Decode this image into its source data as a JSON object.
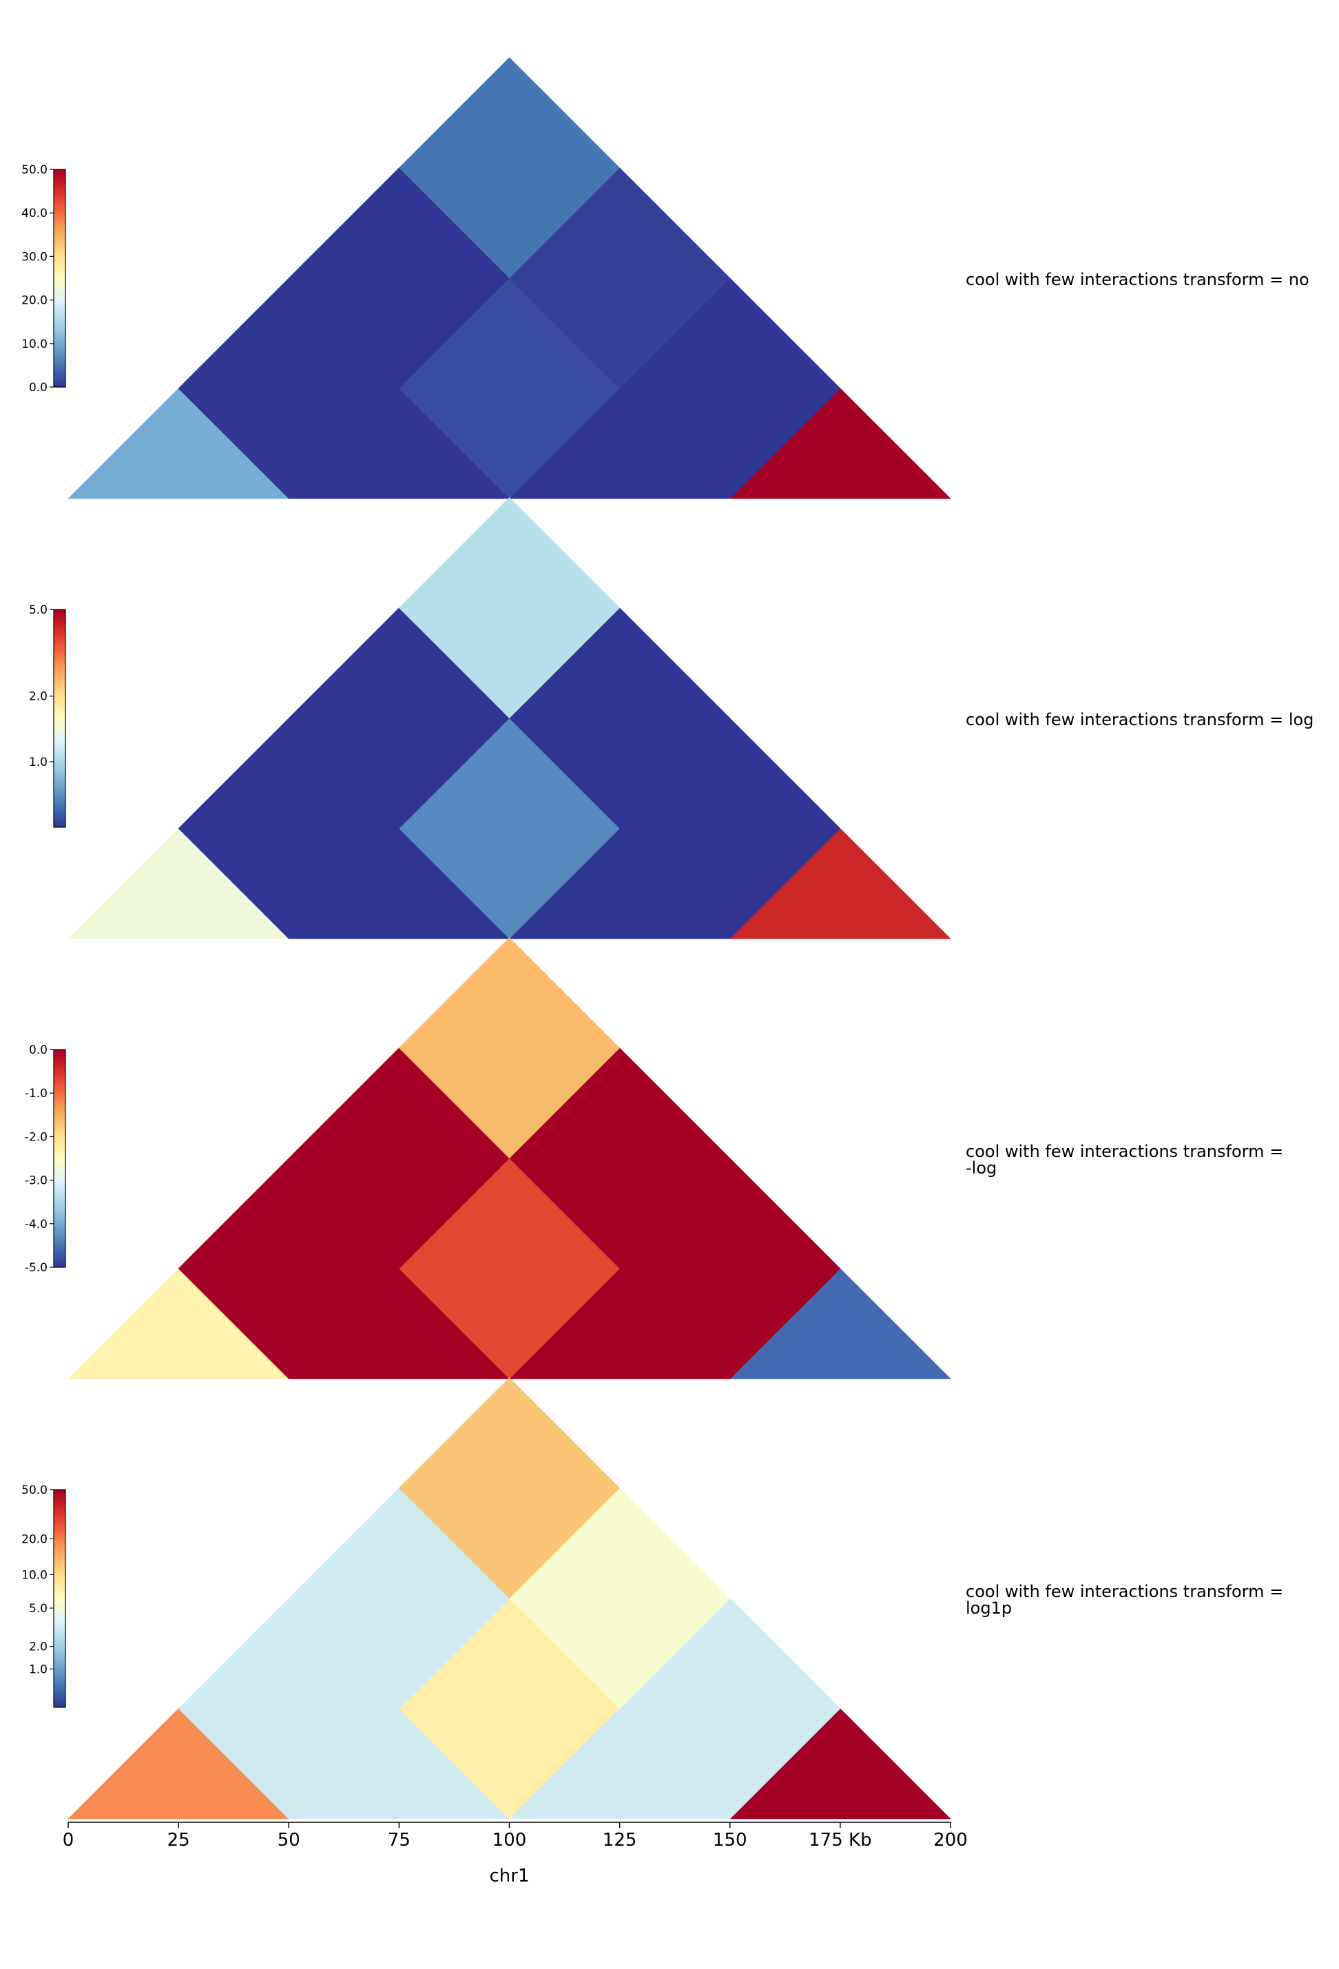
{
  "chart_data": [
    {
      "type": "heatmap",
      "label": [
        "cool with few interactions transform = no"
      ],
      "colorbar": {
        "ticks": [
          "50.0",
          "40.0",
          "30.0",
          "20.0",
          "10.0",
          "0.0"
        ],
        "values": [
          50,
          40,
          30,
          20,
          10,
          0
        ],
        "range": [
          0,
          50
        ],
        "scale": "linear"
      },
      "bins": [
        0,
        50,
        100,
        150,
        200
      ],
      "cells": [
        {
          "i": 0,
          "j": 0,
          "value": 12,
          "color": "#74add1"
        },
        {
          "i": 1,
          "j": 1,
          "value": 0,
          "color": "#313695"
        },
        {
          "i": 2,
          "j": 2,
          "value": 0,
          "color": "#313695"
        },
        {
          "i": 3,
          "j": 3,
          "value": 50,
          "color": "#a50026"
        },
        {
          "i": 0,
          "j": 1,
          "value": 0,
          "color": "#313695"
        },
        {
          "i": 1,
          "j": 2,
          "value": 2,
          "color": "#3a4c9f"
        },
        {
          "i": 2,
          "j": 3,
          "value": 0,
          "color": "#313695"
        },
        {
          "i": 0,
          "j": 2,
          "value": 0,
          "color": "#313695"
        },
        {
          "i": 1,
          "j": 3,
          "value": 1,
          "color": "#364098"
        },
        {
          "i": 0,
          "j": 3,
          "value": 6,
          "color": "#4575b4"
        }
      ]
    },
    {
      "type": "heatmap",
      "label": [
        "cool with few interactions transform = log"
      ],
      "colorbar": {
        "ticks": [
          "5.0",
          "2.0",
          "1.0"
        ],
        "values": [
          5,
          2,
          1
        ],
        "range": [
          0.5,
          5
        ],
        "scale": "log"
      },
      "bins": [
        0,
        50,
        100,
        150,
        200
      ],
      "cells": [
        {
          "i": 0,
          "j": 0,
          "value": 2.5,
          "color": "#f0f8da"
        },
        {
          "i": 1,
          "j": 1,
          "value": 0.5,
          "color": "#313695"
        },
        {
          "i": 2,
          "j": 2,
          "value": 0.5,
          "color": "#313695"
        },
        {
          "i": 3,
          "j": 3,
          "value": 4,
          "color": "#cb2727"
        },
        {
          "i": 0,
          "j": 1,
          "value": 0.5,
          "color": "#313695"
        },
        {
          "i": 1,
          "j": 2,
          "value": 1,
          "color": "#588abf"
        },
        {
          "i": 2,
          "j": 3,
          "value": 0.5,
          "color": "#313695"
        },
        {
          "i": 0,
          "j": 2,
          "value": 0.5,
          "color": "#313695"
        },
        {
          "i": 1,
          "j": 3,
          "value": 0.5,
          "color": "#313695"
        },
        {
          "i": 0,
          "j": 3,
          "value": 1.7,
          "color": "#b4dfeb"
        }
      ]
    },
    {
      "type": "heatmap",
      "label": [
        "cool with few interactions transform =",
        "-log"
      ],
      "colorbar": {
        "ticks": [
          "0.0",
          "-1.0",
          "-2.0",
          "-3.0",
          "-4.0",
          "-5.0"
        ],
        "values": [
          0,
          -1,
          -2,
          -3,
          -4,
          -5
        ],
        "range": [
          -5,
          0
        ],
        "scale": "linear"
      },
      "bins": [
        0,
        50,
        100,
        150,
        200
      ],
      "cells": [
        {
          "i": 0,
          "j": 0,
          "value": -2.5,
          "color": "#fff1ae"
        },
        {
          "i": 1,
          "j": 1,
          "value": 0,
          "color": "#a50026"
        },
        {
          "i": 2,
          "j": 2,
          "value": 0,
          "color": "#a50026"
        },
        {
          "i": 3,
          "j": 3,
          "value": -4.3,
          "color": "#4369b0"
        },
        {
          "i": 0,
          "j": 1,
          "value": 0,
          "color": "#a50026"
        },
        {
          "i": 1,
          "j": 2,
          "value": -0.7,
          "color": "#e24931"
        },
        {
          "i": 2,
          "j": 3,
          "value": 0,
          "color": "#a50026"
        },
        {
          "i": 0,
          "j": 2,
          "value": 0,
          "color": "#a50026"
        },
        {
          "i": 1,
          "j": 3,
          "value": 0,
          "color": "#a50026"
        },
        {
          "i": 0,
          "j": 3,
          "value": -1.7,
          "color": "#fbb96c"
        }
      ]
    },
    {
      "type": "heatmap",
      "label": [
        "cool with few interactions transform =",
        "log1p"
      ],
      "colorbar": {
        "ticks": [
          "50.0",
          "20.0",
          "10.0",
          "5.0",
          "2.0",
          "1.0"
        ],
        "values": [
          50,
          20,
          10,
          5,
          2,
          1
        ],
        "range": [
          0,
          50
        ],
        "scale": "log1p"
      },
      "bins": [
        0,
        50,
        100,
        150,
        200
      ],
      "cells": [
        {
          "i": 0,
          "j": 0,
          "value": 15,
          "color": "#f88c52"
        },
        {
          "i": 1,
          "j": 1,
          "value": 0,
          "color": "#d0eaf1"
        },
        {
          "i": 2,
          "j": 2,
          "value": 0,
          "color": "#d0eaf1"
        },
        {
          "i": 3,
          "j": 3,
          "value": 50,
          "color": "#a50026"
        },
        {
          "i": 0,
          "j": 1,
          "value": 0,
          "color": "#d0eaf1"
        },
        {
          "i": 1,
          "j": 2,
          "value": 2.5,
          "color": "#feeeaa"
        },
        {
          "i": 2,
          "j": 3,
          "value": 0,
          "color": "#d0eaf1"
        },
        {
          "i": 0,
          "j": 2,
          "value": 0,
          "color": "#d0eaf1"
        },
        {
          "i": 1,
          "j": 3,
          "value": 1.5,
          "color": "#f8fbce"
        },
        {
          "i": 0,
          "j": 3,
          "value": 6,
          "color": "#fac477"
        }
      ]
    }
  ],
  "x_axis": {
    "ticks": [
      "0",
      "25",
      "50",
      "75",
      "100",
      "125",
      "150",
      "175 Kb",
      "200"
    ],
    "values": [
      0,
      25,
      50,
      75,
      100,
      125,
      150,
      175,
      200
    ],
    "range": [
      0,
      200
    ],
    "chrom_label": "chr1"
  },
  "colormap": [
    "#313695",
    "#4575b4",
    "#74add1",
    "#abd9e9",
    "#e0f3f8",
    "#ffffbf",
    "#fee090",
    "#fdae61",
    "#f46d43",
    "#d73027",
    "#a50026"
  ]
}
